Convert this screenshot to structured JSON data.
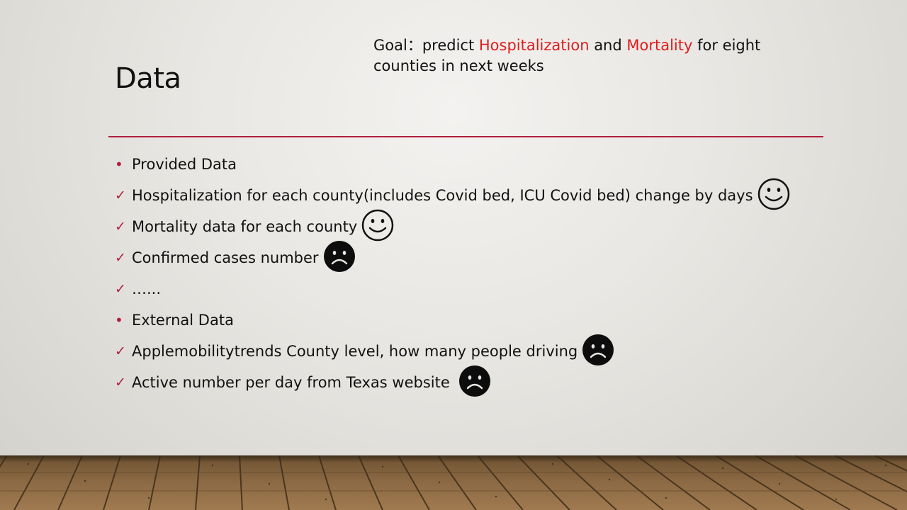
{
  "slide": {
    "title": "Data",
    "goal": {
      "prefix": "Goal：predict ",
      "hospitalization": "Hospitalization",
      "and": " and ",
      "mortality": "Mortality",
      "suffix": " for eight counties in next weeks"
    },
    "bullets": [
      {
        "marker": "•",
        "text": "Provided Data",
        "face": null
      },
      {
        "marker": "✓",
        "text": "Hospitalization  for each county(includes Covid bed, ICU Covid bed) change by days",
        "face": "smile-icon"
      },
      {
        "marker": "✓",
        "text": "Mortality data for each county",
        "face": "smile-icon"
      },
      {
        "marker": "✓",
        "text": "Confirmed cases number",
        "face": "frown-icon"
      },
      {
        "marker": "✓",
        "text": "…...",
        "face": null
      },
      {
        "marker": "•",
        "text": "External Data",
        "face": null
      },
      {
        "marker": "✓",
        "text": "Applemobilitytrends   County level, how many people driving",
        "face": "frown-icon"
      },
      {
        "marker": "✓",
        "text": "Active number per day from Texas website",
        "face": "frown-icon"
      }
    ],
    "colors": {
      "accent": "#b21e3c",
      "highlight": "#e01b1b",
      "text": "#111111"
    }
  }
}
